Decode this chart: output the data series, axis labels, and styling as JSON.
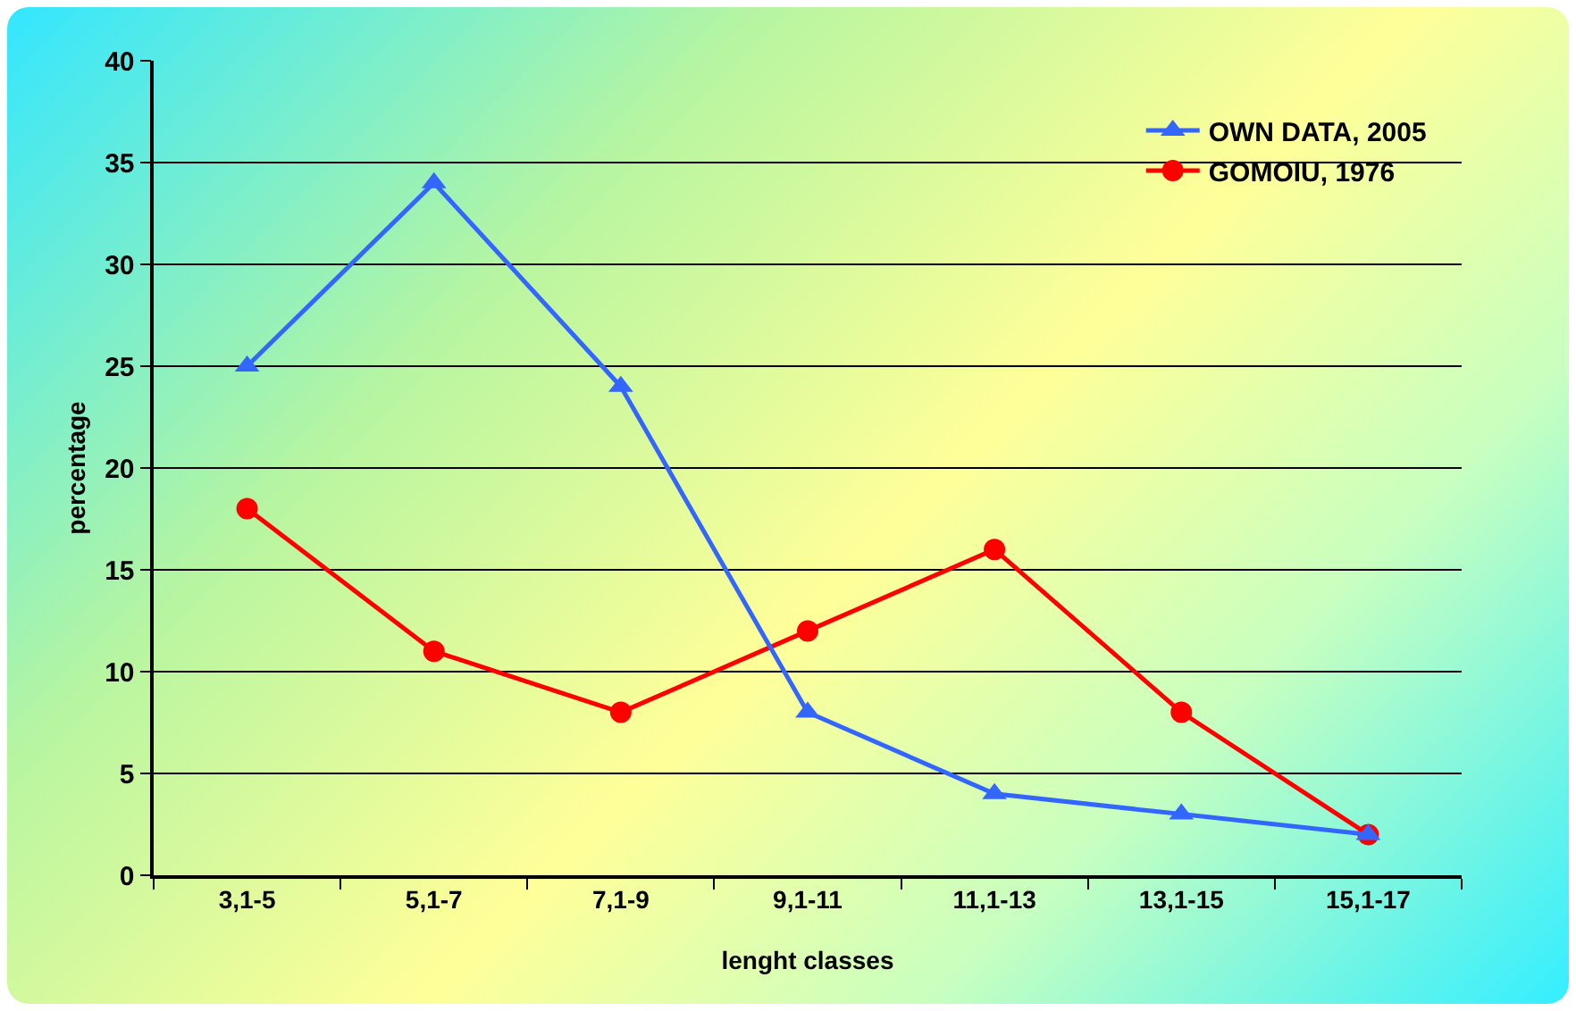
{
  "chart_data": {
    "type": "line",
    "xlabel": "lenght classes",
    "ylabel": "percentage",
    "categories": [
      "3,1-5",
      "5,1-7",
      "7,1-9",
      "9,1-11",
      "11,1-13",
      "13,1-15",
      "15,1-17"
    ],
    "series": [
      {
        "name": "OWN DATA, 2005",
        "color": "#3366ff",
        "marker": "triangle",
        "values": [
          25,
          34,
          24,
          8,
          4,
          3,
          2
        ]
      },
      {
        "name": "GOMOIU, 1976",
        "color": "#ff0000",
        "marker": "circle",
        "values": [
          18,
          11,
          8,
          12,
          16,
          8,
          2
        ]
      }
    ],
    "ylim": [
      0,
      40
    ],
    "yticks": [
      0,
      5,
      10,
      15,
      20,
      25,
      30,
      35,
      40
    ],
    "grid": "y",
    "legend": "top right",
    "line_style": "solid"
  }
}
